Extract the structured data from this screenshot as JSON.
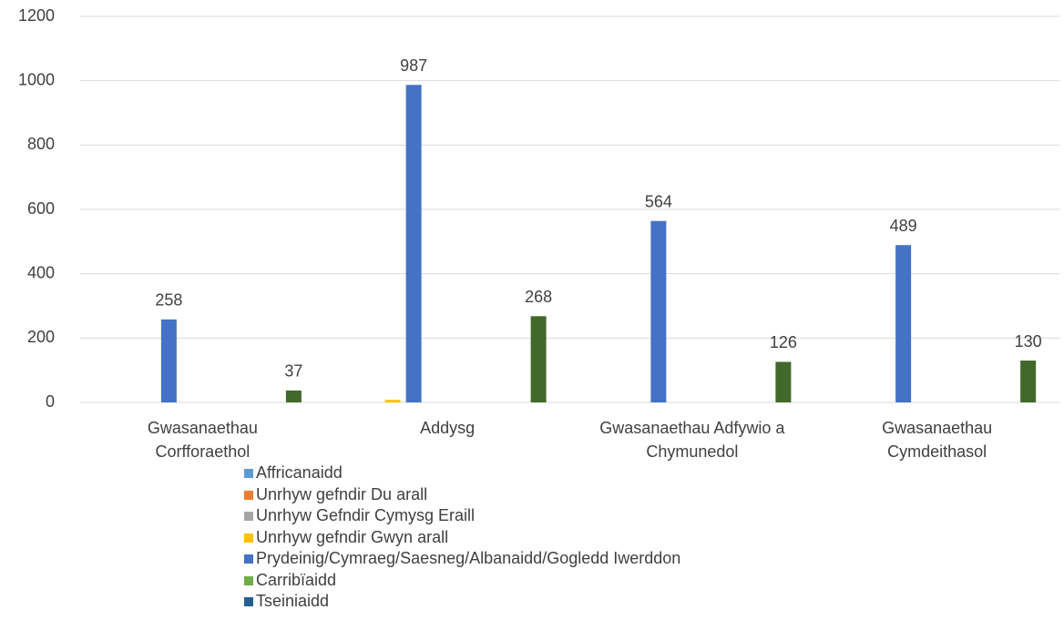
{
  "chart_data": {
    "type": "bar",
    "categories": [
      "Gwasanaethau Corfforaethol",
      "Addysg",
      "Gwasanaethau Adfywio a Chymunedol",
      "Gwasanaethau Cymdeithasol"
    ],
    "series": [
      {
        "name": "Affricanaidd",
        "color": "#5b9bd5",
        "values": [
          0,
          0,
          0,
          0
        ]
      },
      {
        "name": "Unrhyw gefndir Du arall",
        "color": "#ed7d31",
        "values": [
          0,
          0,
          0,
          0
        ]
      },
      {
        "name": "Unrhyw Gefndir Cymysg Eraill",
        "color": "#a5a5a5",
        "values": [
          0,
          0,
          0,
          0
        ]
      },
      {
        "name": "Unrhyw gefndir Gwyn arall",
        "color": "#ffc000",
        "values": [
          0,
          8,
          0,
          0
        ]
      },
      {
        "name": "Prydeinig/Cymraeg/Saesneg/Albanaidd/Gogledd Iwerddon",
        "color": "#4472c4",
        "values": [
          258,
          987,
          564,
          489
        ],
        "data_labels": true
      },
      {
        "name": "Carribïaidd",
        "color": "#70ad47",
        "values": [
          0,
          0,
          0,
          0
        ]
      },
      {
        "name": "Tseiniaidd",
        "color": "#255e91",
        "values": [
          0,
          0,
          0,
          0
        ]
      },
      {
        "name": null,
        "color": "#43682b",
        "values": [
          37,
          268,
          126,
          130
        ],
        "data_labels": true
      }
    ],
    "ylim": [
      0,
      1200
    ],
    "yticks": [
      0,
      200,
      400,
      600,
      800,
      1000,
      1200
    ],
    "grid": true,
    "legend": "bottom"
  }
}
